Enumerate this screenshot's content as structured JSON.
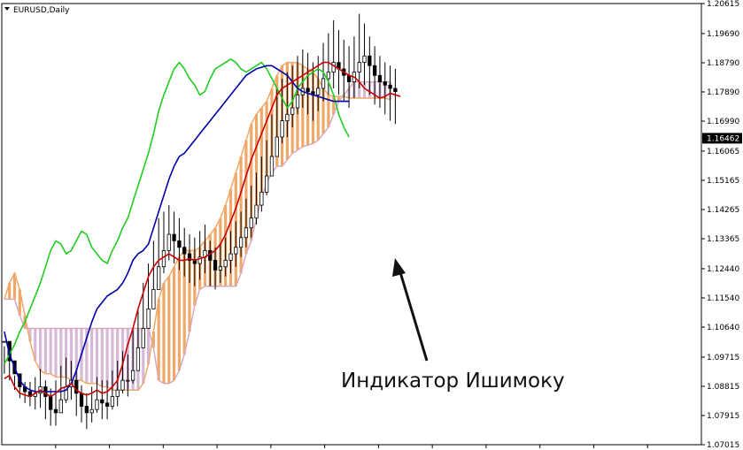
{
  "chart_data": {
    "type": "line",
    "title": "EURUSD,Daily",
    "annotation": "Индикатор Ишимоку",
    "y_ticks": [
      "1.20615",
      "1.19690",
      "1.18790",
      "1.17890",
      "1.16990",
      "1.16065",
      "1.15165",
      "1.14265",
      "1.13365",
      "1.12440",
      "1.11540",
      "1.10640",
      "1.09715",
      "1.08815",
      "1.07915",
      "1.07015"
    ],
    "ylim": [
      1.07015,
      1.20615
    ],
    "current_price": "1.16462",
    "colors": {
      "tenkan": "#cc0000",
      "kijun": "#0000aa",
      "chikou": "#22cc22",
      "kumo_up": "#f0a868",
      "kumo_down": "#d6b8d8",
      "candles": "#000000",
      "arrow": "#111111"
    },
    "n_bars": 136,
    "candles": [
      [
        1.102,
        1.1005,
        1.092
      ],
      [
        1.096,
        1.0995,
        1.09
      ],
      [
        1.092,
        1.0915,
        1.087
      ],
      [
        1.088,
        1.0905,
        1.0845
      ],
      [
        1.0865,
        1.0895,
        1.083
      ],
      [
        1.085,
        1.0895,
        1.082
      ],
      [
        1.086,
        1.091,
        1.081
      ],
      [
        1.088,
        1.0935,
        1.0815
      ],
      [
        1.085,
        1.09,
        1.078
      ],
      [
        1.081,
        1.0875,
        1.076
      ],
      [
        1.08,
        1.09,
        1.076
      ],
      [
        1.084,
        1.0945,
        1.08
      ],
      [
        1.088,
        1.097,
        1.083
      ],
      [
        1.09,
        1.096,
        1.084
      ],
      [
        1.086,
        1.093,
        1.079
      ],
      [
        1.082,
        1.0885,
        1.077
      ],
      [
        1.08,
        1.086,
        1.075
      ],
      [
        1.081,
        1.088,
        1.077
      ],
      [
        1.084,
        1.091,
        1.08
      ],
      [
        1.083,
        1.09,
        1.078
      ],
      [
        1.082,
        1.09,
        1.078
      ],
      [
        1.085,
        1.093,
        1.081
      ],
      [
        1.087,
        1.096,
        1.082
      ],
      [
        1.09,
        1.099,
        1.086
      ],
      [
        1.09,
        1.098,
        1.085
      ],
      [
        1.093,
        1.106,
        1.089
      ],
      [
        1.1,
        1.112,
        1.096
      ],
      [
        1.106,
        1.12,
        1.102
      ],
      [
        1.112,
        1.126,
        1.108
      ],
      [
        1.118,
        1.133,
        1.114
      ],
      [
        1.125,
        1.14,
        1.12
      ],
      [
        1.13,
        1.142,
        1.123
      ],
      [
        1.135,
        1.144,
        1.127
      ],
      [
        1.133,
        1.142,
        1.126
      ],
      [
        1.131,
        1.14,
        1.124
      ],
      [
        1.129,
        1.137,
        1.122
      ],
      [
        1.127,
        1.135,
        1.12
      ],
      [
        1.126,
        1.134,
        1.119
      ],
      [
        1.128,
        1.136,
        1.121
      ],
      [
        1.13,
        1.138,
        1.123
      ],
      [
        1.127,
        1.133,
        1.119
      ],
      [
        1.124,
        1.131,
        1.118
      ],
      [
        1.125,
        1.132,
        1.12
      ],
      [
        1.127,
        1.134,
        1.122
      ],
      [
        1.129,
        1.136,
        1.123
      ],
      [
        1.131,
        1.139,
        1.125
      ],
      [
        1.134,
        1.142,
        1.128
      ],
      [
        1.137,
        1.146,
        1.131
      ],
      [
        1.14,
        1.15,
        1.134
      ],
      [
        1.144,
        1.154,
        1.138
      ],
      [
        1.148,
        1.159,
        1.142
      ],
      [
        1.153,
        1.164,
        1.147
      ],
      [
        1.159,
        1.172,
        1.153
      ],
      [
        1.165,
        1.18,
        1.159
      ],
      [
        1.17,
        1.183,
        1.163
      ],
      [
        1.172,
        1.185,
        1.165
      ],
      [
        1.174,
        1.187,
        1.168
      ],
      [
        1.178,
        1.19,
        1.172
      ],
      [
        1.18,
        1.192,
        1.174
      ],
      [
        1.179,
        1.191,
        1.172
      ],
      [
        1.178,
        1.188,
        1.17
      ],
      [
        1.18,
        1.19,
        1.173
      ],
      [
        1.183,
        1.194,
        1.176
      ],
      [
        1.185,
        1.197,
        1.178
      ],
      [
        1.188,
        1.201,
        1.18
      ],
      [
        1.186,
        1.198,
        1.178
      ],
      [
        1.184,
        1.195,
        1.176
      ],
      [
        1.182,
        1.193,
        1.174
      ],
      [
        1.185,
        1.196,
        1.177
      ],
      [
        1.188,
        1.203,
        1.18
      ],
      [
        1.19,
        1.2,
        1.181
      ],
      [
        1.187,
        1.196,
        1.178
      ],
      [
        1.184,
        1.193,
        1.175
      ],
      [
        1.182,
        1.19,
        1.174
      ],
      [
        1.181,
        1.188,
        1.172
      ],
      [
        1.18,
        1.187,
        1.17
      ],
      [
        1.179,
        1.186,
        1.169
      ]
    ],
    "tenkan": [
      1.0905,
      1.0915,
      1.088,
      1.086,
      1.0855,
      1.085,
      1.086,
      1.087,
      1.086,
      1.085,
      1.086,
      1.0875,
      1.088,
      1.089,
      1.087,
      1.086,
      1.0855,
      1.086,
      1.087,
      1.086,
      1.0865,
      1.088,
      1.09,
      1.095,
      1.101,
      1.106,
      1.112,
      1.117,
      1.122,
      1.125,
      1.127,
      1.128,
      1.129,
      1.128,
      1.127,
      1.127,
      1.1275,
      1.127,
      1.1275,
      1.128,
      1.129,
      1.13,
      1.132,
      1.135,
      1.139,
      1.143,
      1.148,
      1.153,
      1.158,
      1.162,
      1.166,
      1.17,
      1.174,
      1.178,
      1.18,
      1.181,
      1.182,
      1.183,
      1.184,
      1.185,
      1.186,
      1.187,
      1.188,
      1.188,
      1.187,
      1.186,
      1.185,
      1.184,
      1.1835,
      1.182,
      1.18,
      1.179,
      1.178,
      1.177,
      1.1775,
      1.1785,
      1.178,
      1.1775
    ],
    "kijun": [
      1.105,
      1.098,
      1.094,
      1.09,
      1.088,
      1.087,
      1.0865,
      1.0865,
      1.0865,
      1.0865,
      1.0865,
      1.0865,
      1.087,
      1.089,
      1.093,
      1.098,
      1.103,
      1.108,
      1.112,
      1.114,
      1.116,
      1.117,
      1.118,
      1.12,
      1.123,
      1.127,
      1.129,
      1.13,
      1.132,
      1.137,
      1.142,
      1.147,
      1.152,
      1.156,
      1.159,
      1.16,
      1.162,
      1.164,
      1.166,
      1.168,
      1.17,
      1.172,
      1.174,
      1.176,
      1.178,
      1.18,
      1.182,
      1.184,
      1.185,
      1.186,
      1.1865,
      1.187,
      1.187,
      1.186,
      1.185,
      1.184,
      1.182,
      1.18,
      1.179,
      1.1785,
      1.178,
      1.1775,
      1.177,
      1.1765,
      1.176,
      1.176,
      1.176,
      1.176
    ],
    "chikou": [
      1.095,
      1.098,
      1.101,
      1.105,
      1.108,
      1.112,
      1.116,
      1.12,
      1.125,
      1.13,
      1.133,
      1.132,
      1.129,
      1.13,
      1.133,
      1.136,
      1.135,
      1.131,
      1.129,
      1.127,
      1.126,
      1.13,
      1.133,
      1.137,
      1.14,
      1.145,
      1.15,
      1.155,
      1.16,
      1.166,
      1.173,
      1.178,
      1.182,
      1.186,
      1.188,
      1.186,
      1.183,
      1.181,
      1.178,
      1.179,
      1.183,
      1.186,
      1.187,
      1.188,
      1.189,
      1.188,
      1.186,
      1.185,
      1.186,
      1.187,
      1.188,
      1.186,
      1.183,
      1.18,
      1.177,
      1.174,
      1.176,
      1.18,
      1.182,
      1.184,
      1.185,
      1.186,
      1.185,
      1.182,
      1.178,
      1.172,
      1.168,
      1.165
    ],
    "kumo_a": [
      1.115,
      1.12,
      1.123,
      1.118,
      1.11,
      1.102,
      1.096,
      1.093,
      1.092,
      1.092,
      1.091,
      1.091,
      1.091,
      1.09,
      1.09,
      1.09,
      1.089,
      1.089,
      1.089,
      1.088,
      1.088,
      1.087,
      1.087,
      1.087,
      1.087,
      1.087,
      1.087,
      1.089,
      1.095,
      1.105,
      1.115,
      1.12,
      1.122,
      1.125,
      1.128,
      1.13,
      1.13,
      1.13,
      1.131,
      1.133,
      1.135,
      1.137,
      1.14,
      1.144,
      1.149,
      1.154,
      1.159,
      1.164,
      1.169,
      1.172,
      1.174,
      1.176,
      1.18,
      1.184,
      1.187,
      1.188,
      1.188,
      1.188,
      1.187,
      1.186,
      1.185,
      1.183,
      1.18,
      1.178,
      1.1775,
      1.1775,
      1.1775,
      1.177,
      1.177,
      1.177,
      1.177,
      1.177,
      1.177,
      1.177,
      1.177,
      1.1765
    ],
    "kumo_b": [
      1.115,
      1.115,
      1.115,
      1.11,
      1.106,
      1.106,
      1.106,
      1.106,
      1.106,
      1.106,
      1.106,
      1.106,
      1.106,
      1.106,
      1.106,
      1.106,
      1.106,
      1.106,
      1.106,
      1.106,
      1.106,
      1.106,
      1.106,
      1.106,
      1.106,
      1.106,
      1.106,
      1.106,
      1.106,
      1.1,
      1.09,
      1.089,
      1.089,
      1.09,
      1.093,
      1.098,
      1.105,
      1.113,
      1.118,
      1.119,
      1.119,
      1.119,
      1.119,
      1.119,
      1.119,
      1.119,
      1.123,
      1.129,
      1.133,
      1.14,
      1.146,
      1.151,
      1.154,
      1.156,
      1.156,
      1.158,
      1.16,
      1.161,
      1.162,
      1.1625,
      1.163,
      1.164,
      1.166,
      1.168,
      1.172,
      1.176,
      1.178,
      1.18,
      1.182,
      1.182,
      1.182,
      1.182,
      1.182,
      1.182,
      1.182,
      1.182
    ]
  }
}
